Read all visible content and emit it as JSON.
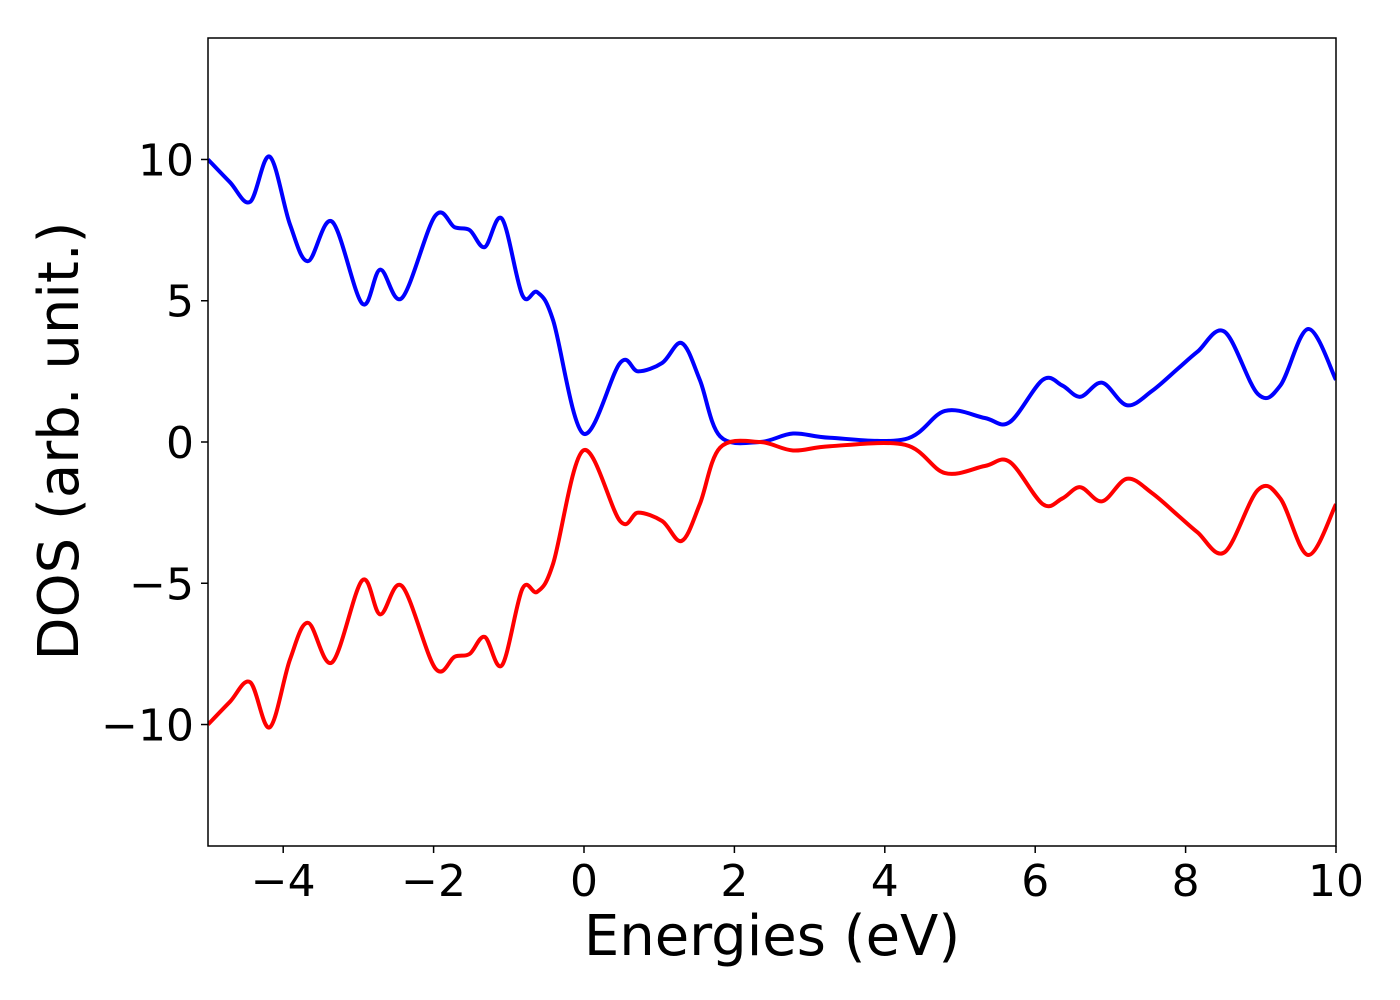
{
  "chart_data": {
    "type": "line",
    "xlabel": "Energies (eV)",
    "ylabel": "DOS (arb. unit.)",
    "x": [
      -5,
      -4.71,
      -4.44,
      -4.18,
      -3.91,
      -3.67,
      -3.35,
      -2.95,
      -2.71,
      -2.42,
      -1.98,
      -1.72,
      -1.52,
      -1.32,
      -1.09,
      -0.82,
      -0.62,
      -0.41,
      -0.01,
      0.48,
      0.72,
      1.04,
      1.3,
      1.54,
      1.81,
      2.34,
      2.78,
      3.27,
      4.27,
      4.8,
      5.33,
      5.66,
      6.1,
      6.36,
      6.6,
      6.89,
      7.22,
      7.55,
      7.9,
      8.16,
      8.52,
      8.96,
      9.26,
      9.63,
      10
    ],
    "series": [
      {
        "color": "#0000ff",
        "values": [
          10.0,
          9.2,
          8.5,
          10.1,
          7.7,
          6.4,
          7.8,
          4.9,
          6.1,
          5.1,
          8.0,
          7.6,
          7.5,
          6.9,
          7.9,
          5.2,
          5.3,
          4.3,
          0.3,
          2.8,
          2.5,
          2.8,
          3.5,
          2.2,
          0.2,
          0.0,
          0.3,
          0.15,
          0.1,
          1.1,
          0.85,
          0.7,
          2.2,
          2.0,
          1.6,
          2.1,
          1.3,
          1.8,
          2.6,
          3.2,
          3.9,
          1.7,
          2.0,
          4.0,
          2.2
        ]
      },
      {
        "color": "#ff0000",
        "values": [
          -10.0,
          -9.2,
          -8.5,
          -10.1,
          -7.7,
          -6.4,
          -7.8,
          -4.9,
          -6.1,
          -5.1,
          -8.0,
          -7.6,
          -7.5,
          -6.9,
          -7.9,
          -5.2,
          -5.3,
          -4.3,
          -0.3,
          -2.8,
          -2.5,
          -2.8,
          -3.5,
          -2.2,
          -0.2,
          0.0,
          -0.3,
          -0.15,
          -0.1,
          -1.1,
          -0.85,
          -0.7,
          -2.2,
          -2.0,
          -1.6,
          -2.1,
          -1.3,
          -1.8,
          -2.6,
          -3.2,
          -3.9,
          -1.7,
          -2.0,
          -4.0,
          -2.2
        ]
      }
    ],
    "xlim": [
      -5,
      10
    ],
    "xticks": [
      {
        "value": -4,
        "label": "−4"
      },
      {
        "value": -2,
        "label": "−2"
      },
      0,
      2,
      4,
      6,
      8,
      10
    ],
    "ylim": [
      -14.3,
      14.3
    ],
    "yticks": [
      {
        "value": -10,
        "label": "−10"
      },
      {
        "value": -5,
        "label": "−5"
      },
      0,
      5,
      10
    ],
    "grid": false
  }
}
